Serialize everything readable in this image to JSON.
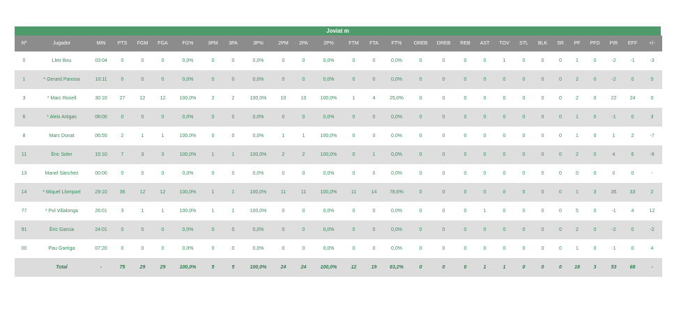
{
  "team": "Joviat m",
  "columns": [
    "Nº",
    "Jugador",
    "MIN",
    "PTS",
    "FGM",
    "FGA",
    "FG%",
    "3PM",
    "3PA",
    "3P%",
    "2PM",
    "2PA",
    "2P%",
    "FTM",
    "FTA",
    "FT%",
    "OREB",
    "DREB",
    "REB",
    "AST",
    "TOV",
    "STL",
    "BLK",
    "SR",
    "PF",
    "PFD",
    "PIR",
    "EFF",
    "+/-"
  ],
  "rows": [
    [
      "0",
      "Lleir Bou",
      "03:04",
      "0",
      "0",
      "0",
      "0,0%",
      "0",
      "0",
      "0,0%",
      "0",
      "0",
      "0,0%",
      "0",
      "0",
      "0,0%",
      "0",
      "0",
      "0",
      "0",
      "1",
      "0",
      "0",
      "0",
      "1",
      "0",
      "-2",
      "-1",
      "-3"
    ],
    [
      "1",
      "* Gerard Panosa",
      "10:11",
      "0",
      "0",
      "0",
      "0,0%",
      "0",
      "0",
      "0,0%",
      "0",
      "0",
      "0,0%",
      "0",
      "0",
      "0,0%",
      "0",
      "0",
      "0",
      "0",
      "0",
      "0",
      "0",
      "0",
      "2",
      "0",
      "-2",
      "0",
      "5"
    ],
    [
      "3",
      "* Marc Rosell",
      "30:10",
      "27",
      "12",
      "12",
      "100,0%",
      "2",
      "2",
      "100,0%",
      "10",
      "10",
      "100,0%",
      "1",
      "4",
      "25,0%",
      "0",
      "0",
      "0",
      "0",
      "0",
      "0",
      "0",
      "0",
      "2",
      "0",
      "22",
      "24",
      "0"
    ],
    [
      "6",
      "* Aleix Artigas",
      "08:00",
      "0",
      "0",
      "0",
      "0,0%",
      "0",
      "0",
      "0,0%",
      "0",
      "0",
      "0,0%",
      "0",
      "0",
      "0,0%",
      "0",
      "0",
      "0",
      "0",
      "0",
      "0",
      "0",
      "0",
      "1",
      "0",
      "-1",
      "0",
      "3"
    ],
    [
      "8",
      "Marc Donat",
      "06:55",
      "2",
      "1",
      "1",
      "100,0%",
      "0",
      "0",
      "0,0%",
      "1",
      "1",
      "100,0%",
      "0",
      "0",
      "0,0%",
      "0",
      "0",
      "0",
      "0",
      "0",
      "0",
      "0",
      "0",
      "1",
      "0",
      "1",
      "2",
      "-7"
    ],
    [
      "11",
      "Èric Soler",
      "15:10",
      "7",
      "3",
      "3",
      "100,0%",
      "1",
      "1",
      "100,0%",
      "2",
      "2",
      "100,0%",
      "0",
      "1",
      "0,0%",
      "0",
      "0",
      "0",
      "0",
      "0",
      "0",
      "0",
      "0",
      "2",
      "0",
      "4",
      "6",
      "-9"
    ],
    [
      "13",
      "Manel Sànchez",
      "00:00",
      "0",
      "0",
      "0",
      "0,0%",
      "0",
      "0",
      "0,0%",
      "0",
      "0",
      "0,0%",
      "0",
      "0",
      "0,0%",
      "0",
      "0",
      "0",
      "0",
      "0",
      "0",
      "0",
      "0",
      "0",
      "0",
      "0",
      "0",
      "-"
    ],
    [
      "14",
      "* Miquel Llompart",
      "29:10",
      "36",
      "12",
      "12",
      "100,0%",
      "1",
      "1",
      "100,0%",
      "11",
      "11",
      "100,0%",
      "11",
      "14",
      "78,6%",
      "0",
      "0",
      "0",
      "0",
      "0",
      "0",
      "0",
      "0",
      "1",
      "3",
      "35",
      "33",
      "2"
    ],
    [
      "77",
      "* Pol Villalonga",
      "26:01",
      "3",
      "1",
      "1",
      "100,0%",
      "1",
      "1",
      "100,0%",
      "0",
      "0",
      "0,0%",
      "0",
      "0",
      "0,0%",
      "0",
      "0",
      "0",
      "1",
      "0",
      "0",
      "0",
      "0",
      "5",
      "0",
      "-1",
      "4",
      "12"
    ],
    [
      "91",
      "Èric García",
      "24:01",
      "0",
      "0",
      "0",
      "0,0%",
      "0",
      "0",
      "0,0%",
      "0",
      "0",
      "0,0%",
      "0",
      "0",
      "0,0%",
      "0",
      "0",
      "0",
      "0",
      "0",
      "0",
      "0",
      "0",
      "2",
      "0",
      "-2",
      "0",
      "-2"
    ],
    [
      "00",
      "Pau Garriga",
      "07:20",
      "0",
      "0",
      "0",
      "0,0%",
      "0",
      "0",
      "0,0%",
      "0",
      "0",
      "0,0%",
      "0",
      "0",
      "0,0%",
      "0",
      "0",
      "0",
      "0",
      "0",
      "0",
      "0",
      "0",
      "1",
      "0",
      "-1",
      "0",
      "4"
    ]
  ],
  "total": [
    "",
    "Total",
    "-",
    "75",
    "29",
    "29",
    "100,0%",
    "5",
    "5",
    "100,0%",
    "24",
    "24",
    "100,0%",
    "12",
    "19",
    "63,2%",
    "0",
    "0",
    "0",
    "1",
    "1",
    "0",
    "0",
    "0",
    "18",
    "3",
    "53",
    "68",
    "-"
  ]
}
